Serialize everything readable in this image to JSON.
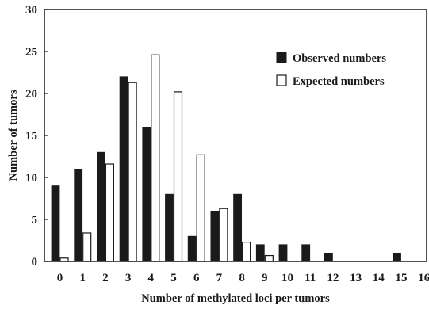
{
  "chart_data": {
    "type": "bar",
    "title": "",
    "xlabel": "Number of methylated loci per tumors",
    "ylabel": "Number of tumors",
    "categories": [
      "0",
      "1",
      "2",
      "3",
      "4",
      "5",
      "6",
      "7",
      "8",
      "9",
      "10",
      "11",
      "12",
      "13",
      "14",
      "15",
      "16"
    ],
    "ylim": [
      0,
      30
    ],
    "yticks": [
      "0",
      "5",
      "10",
      "15",
      "20",
      "25",
      "30"
    ],
    "grid": false,
    "legend_position": "top-right",
    "series": [
      {
        "name": "Observed numbers",
        "fill": "#1a1a1a",
        "values": [
          9,
          11,
          13,
          22,
          16,
          8,
          3,
          6,
          8,
          2,
          2,
          2,
          1,
          0,
          0,
          1,
          0
        ]
      },
      {
        "name": "Expected numbers",
        "fill": "#ffffff",
        "values": [
          0.4,
          3.4,
          11.6,
          21.3,
          24.6,
          20.2,
          12.7,
          6.3,
          2.3,
          0.7,
          0,
          0,
          0,
          0,
          0,
          0,
          0
        ]
      }
    ]
  }
}
